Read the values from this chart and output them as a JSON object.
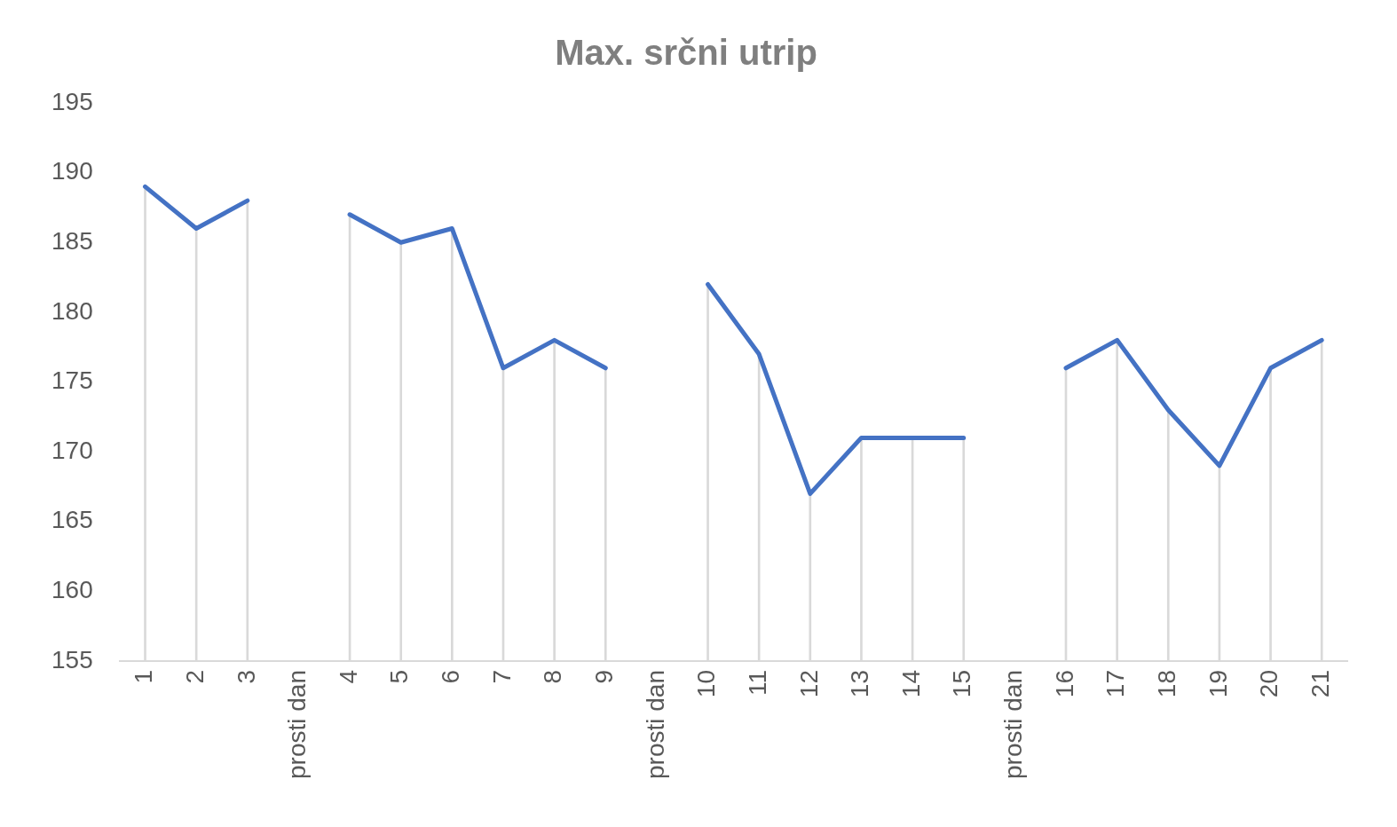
{
  "chart_data": {
    "type": "line",
    "title": "Max. srčni utrip",
    "categories": [
      "1",
      "2",
      "3",
      "prosti dan",
      "4",
      "5",
      "6",
      "7",
      "8",
      "9",
      "prosti dan",
      "10",
      "11",
      "12",
      "13",
      "14",
      "15",
      "prosti dan",
      "16",
      "17",
      "18",
      "19",
      "20",
      "21"
    ],
    "series": [
      {
        "type": "bar",
        "color": "#d9d9d9",
        "values": [
          189,
          186,
          188,
          null,
          187,
          185,
          186,
          176,
          178,
          176,
          null,
          182,
          177,
          167,
          171,
          171,
          171,
          null,
          176,
          178,
          173,
          169,
          176,
          178
        ]
      },
      {
        "color": "#4472c4",
        "values": [
          189,
          186,
          188,
          null,
          187,
          185,
          186,
          176,
          178,
          176,
          null,
          182,
          177,
          167,
          171,
          171,
          171,
          null,
          176,
          178,
          173,
          169,
          176,
          178
        ]
      }
    ],
    "ylim": [
      155,
      195
    ],
    "yticks": [
      155,
      160,
      165,
      170,
      175,
      180,
      185,
      190,
      195
    ],
    "grid": false,
    "legend": false,
    "marker": "none",
    "line_style": "solid"
  }
}
